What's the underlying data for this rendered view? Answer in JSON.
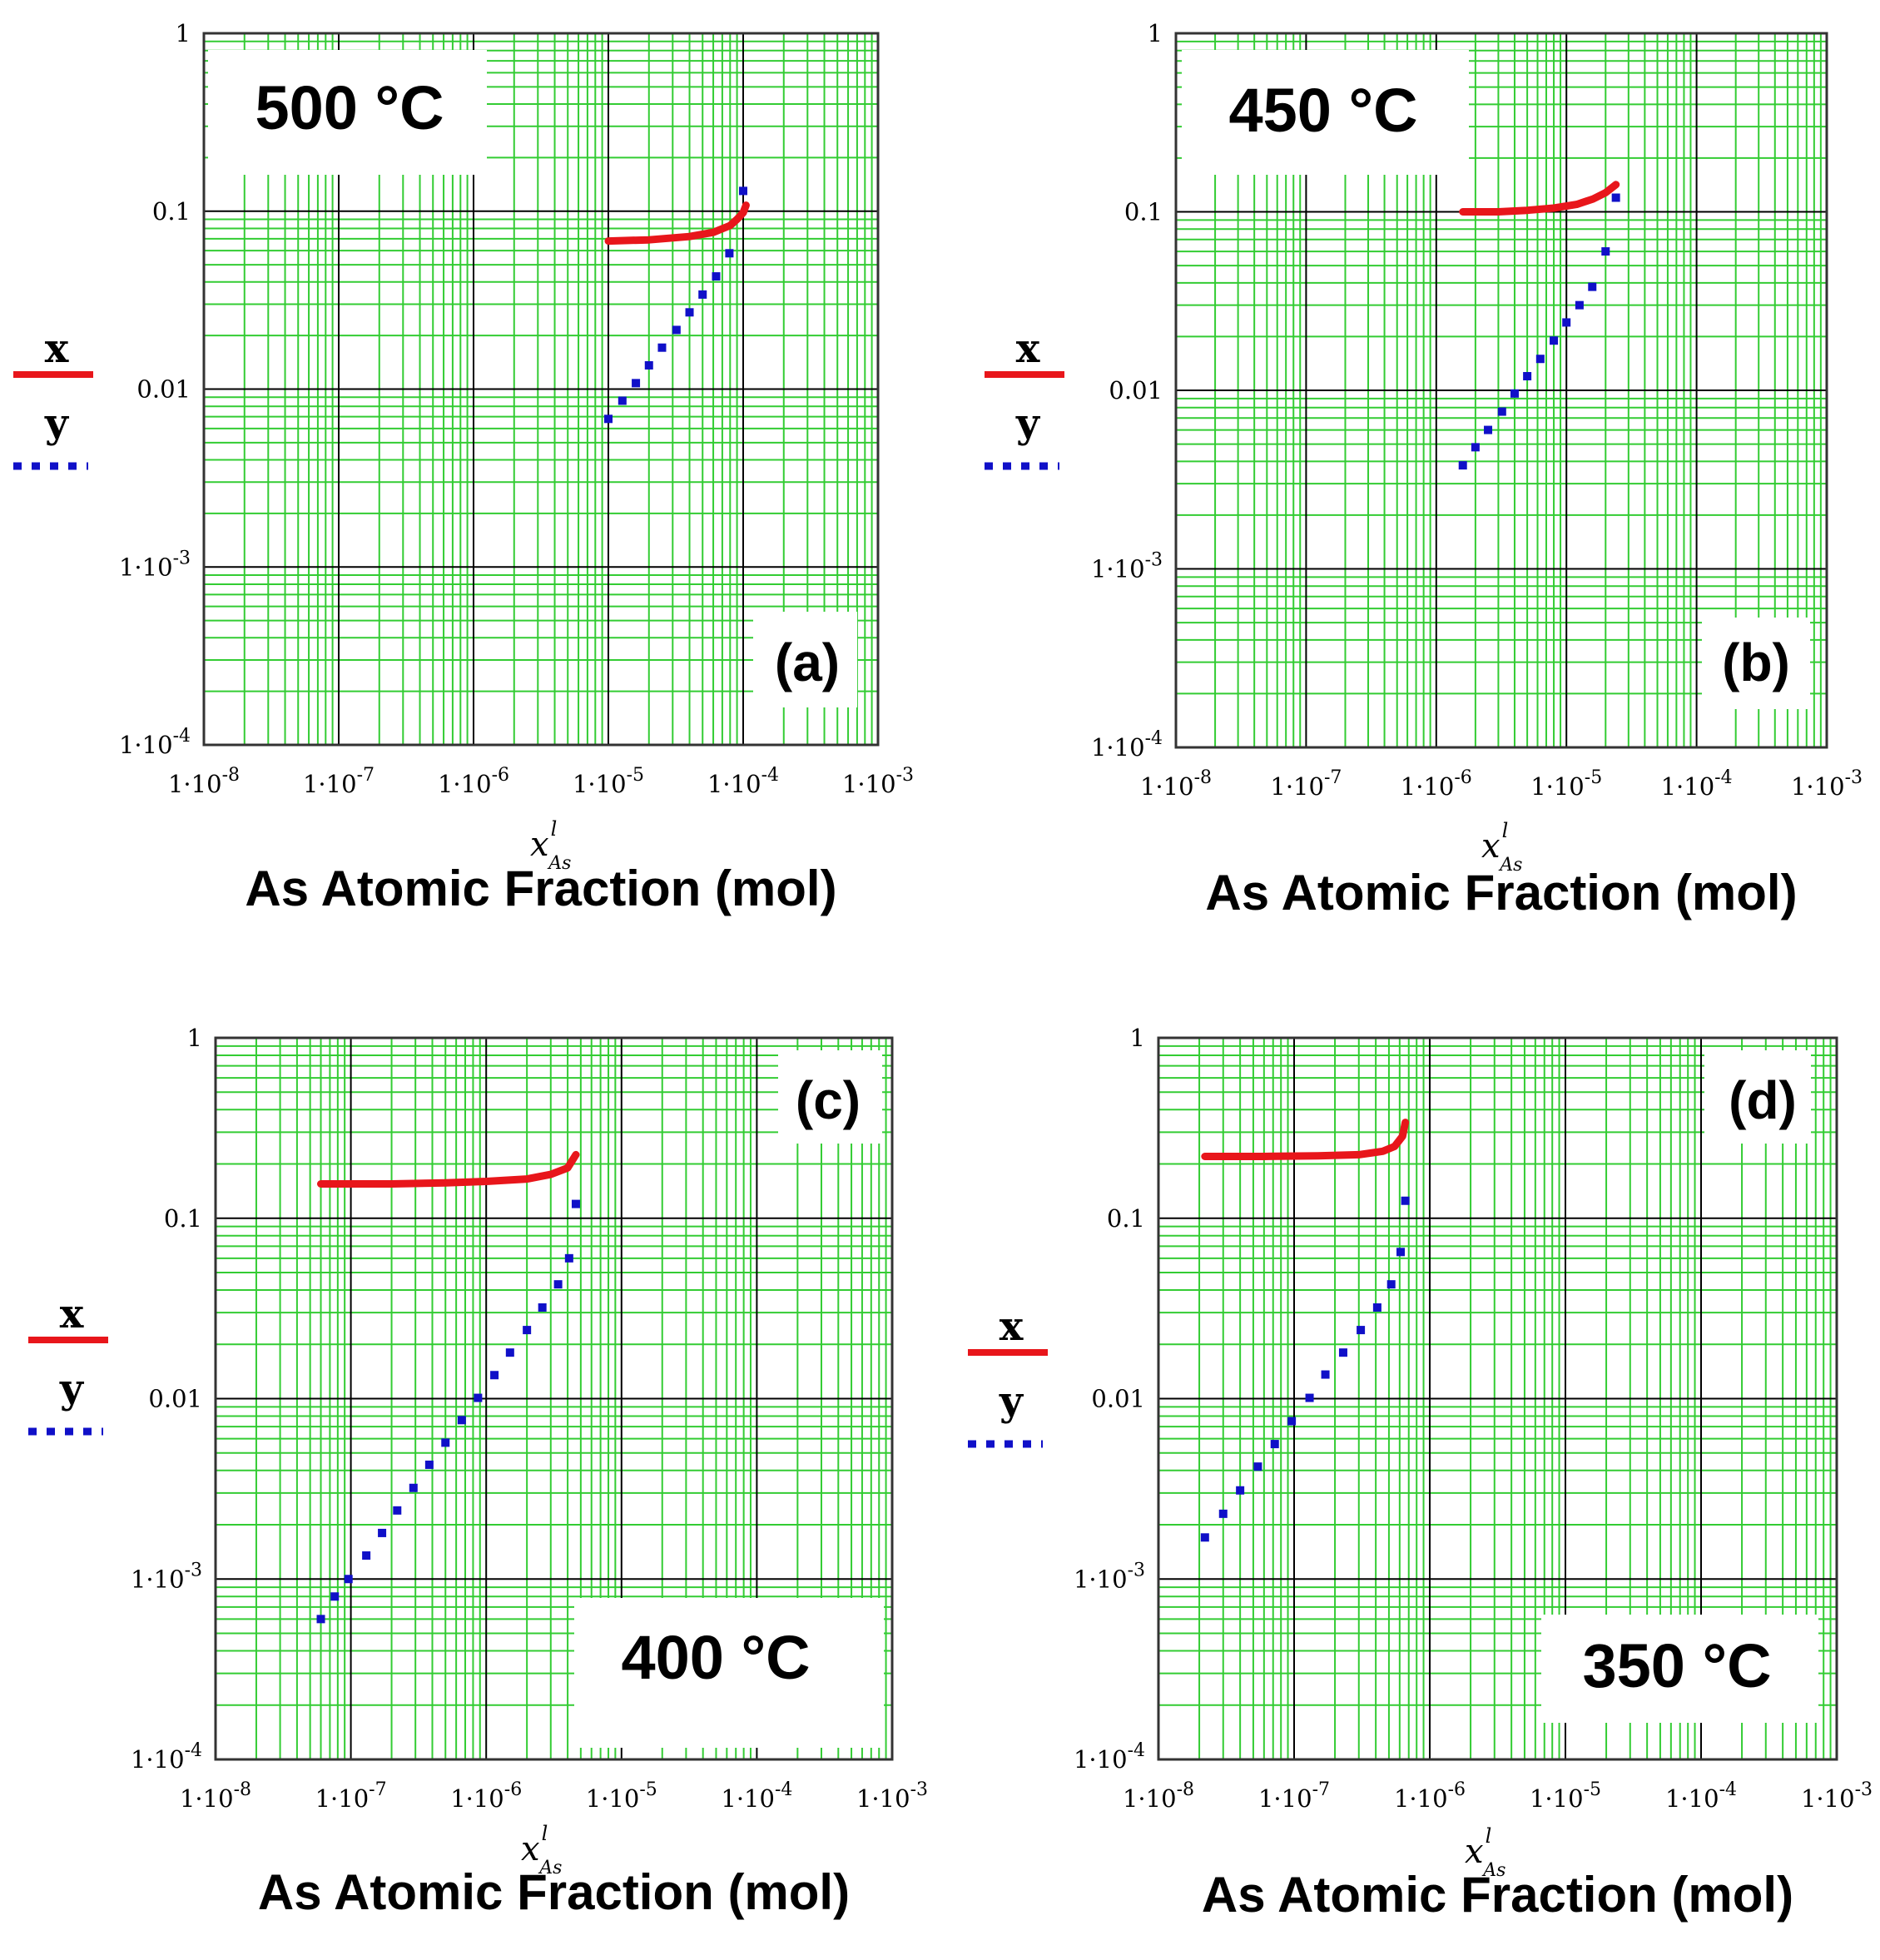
{
  "figure": {
    "axis_symbol": {
      "base": "x",
      "superscript": "l",
      "subscript": "As"
    },
    "legend": {
      "x_label": "x",
      "y_label": "y"
    },
    "colors": {
      "grid_minor": "#33cc33",
      "grid_major": "#000000",
      "series_x": "#e8161b",
      "series_y": "#1010c8"
    }
  },
  "chart_data": [
    {
      "type": "line",
      "panel_label": "(a)",
      "temperature_label": "500 °C",
      "xlabel": "As Atomic Fraction (mol)",
      "xscale": "log",
      "yscale": "log",
      "xlim": [
        1e-08,
        0.001
      ],
      "ylim": [
        0.0001,
        1
      ],
      "x_ticks": [
        "1·10-8",
        "1·10-7",
        "1·10-6",
        "1·10-5",
        "1·10-4",
        "1·10-3"
      ],
      "y_ticks": [
        "1·10-4",
        "1·10-3",
        "0.01",
        "0.1",
        "1"
      ],
      "series": [
        {
          "name": "x",
          "style": "solid",
          "x": [
            1e-05,
            2e-05,
            4e-05,
            6e-05,
            8e-05,
            9e-05,
            0.0001,
            0.000105
          ],
          "y": [
            0.068,
            0.069,
            0.072,
            0.076,
            0.083,
            0.09,
            0.098,
            0.108
          ]
        },
        {
          "name": "y",
          "style": "dotted",
          "x": [
            1e-05,
            1.27e-05,
            1.6e-05,
            2e-05,
            2.5e-05,
            3.2e-05,
            4e-05,
            5e-05,
            6.3e-05,
            7.9e-05,
            0.0001
          ],
          "y": [
            0.0068,
            0.0086,
            0.0108,
            0.0136,
            0.0171,
            0.0215,
            0.027,
            0.034,
            0.043,
            0.058,
            0.13
          ]
        }
      ]
    },
    {
      "type": "line",
      "panel_label": "(b)",
      "temperature_label": "450 °C",
      "xlabel": "As Atomic Fraction (mol)",
      "xscale": "log",
      "yscale": "log",
      "xlim": [
        1e-08,
        0.001
      ],
      "ylim": [
        0.0001,
        1
      ],
      "x_ticks": [
        "1·10-8",
        "1·10-7",
        "1·10-6",
        "1·10-5",
        "1·10-4",
        "1·10-3"
      ],
      "y_ticks": [
        "1·10-4",
        "1·10-3",
        "0.01",
        "0.1",
        "1"
      ],
      "series": [
        {
          "name": "x",
          "style": "solid",
          "x": [
            1.6e-06,
            3e-06,
            5e-06,
            8e-06,
            1.2e-05,
            1.6e-05,
            2e-05,
            2.4e-05
          ],
          "y": [
            0.1,
            0.1,
            0.102,
            0.105,
            0.11,
            0.118,
            0.128,
            0.142
          ]
        },
        {
          "name": "y",
          "style": "dotted",
          "x": [
            1.6e-06,
            2e-06,
            2.5e-06,
            3.2e-06,
            4e-06,
            5e-06,
            6.3e-06,
            8e-06,
            1e-05,
            1.26e-05,
            1.58e-05,
            2e-05,
            2.4e-05
          ],
          "y": [
            0.0038,
            0.0048,
            0.006,
            0.0076,
            0.0096,
            0.012,
            0.015,
            0.019,
            0.024,
            0.03,
            0.038,
            0.06,
            0.12
          ]
        }
      ]
    },
    {
      "type": "line",
      "panel_label": "(c)",
      "temperature_label": "400 °C",
      "xlabel": "As Atomic Fraction (mol)",
      "xscale": "log",
      "yscale": "log",
      "xlim": [
        1e-08,
        0.001
      ],
      "ylim": [
        0.0001,
        1
      ],
      "x_ticks": [
        "1·10-8",
        "1·10-7",
        "1·10-6",
        "1·10-5",
        "1·10-4",
        "1·10-3"
      ],
      "y_ticks": [
        "1·10-4",
        "1·10-3",
        "0.01",
        "0.1",
        "1"
      ],
      "series": [
        {
          "name": "x",
          "style": "solid",
          "x": [
            6e-08,
            2e-07,
            5e-07,
            1e-06,
            2e-06,
            3e-06,
            4e-06,
            4.6e-06
          ],
          "y": [
            0.155,
            0.155,
            0.157,
            0.16,
            0.165,
            0.175,
            0.19,
            0.225
          ]
        },
        {
          "name": "y",
          "style": "dotted",
          "x": [
            6e-08,
            7.6e-08,
            9.6e-08,
            1.3e-07,
            1.7e-07,
            2.2e-07,
            2.9e-07,
            3.8e-07,
            5e-07,
            6.6e-07,
            8.7e-07,
            1.15e-06,
            1.5e-06,
            2e-06,
            2.6e-06,
            3.4e-06,
            4.1e-06,
            4.6e-06
          ],
          "y": [
            0.0006,
            0.0008,
            0.001,
            0.00135,
            0.0018,
            0.0024,
            0.0032,
            0.0043,
            0.0057,
            0.0076,
            0.0101,
            0.0135,
            0.018,
            0.024,
            0.032,
            0.043,
            0.06,
            0.12
          ]
        }
      ]
    },
    {
      "type": "line",
      "panel_label": "(d)",
      "temperature_label": "350 °C",
      "xlabel": "As Atomic Fraction (mol)",
      "xscale": "log",
      "yscale": "log",
      "xlim": [
        1e-08,
        0.001
      ],
      "ylim": [
        0.0001,
        1
      ],
      "x_ticks": [
        "1·10-8",
        "1·10-7",
        "1·10-6",
        "1·10-5",
        "1·10-4",
        "1·10-3"
      ],
      "y_ticks": [
        "1·10-4",
        "1·10-3",
        "0.01",
        "0.1",
        "1"
      ],
      "series": [
        {
          "name": "x",
          "style": "solid",
          "x": [
            2.2e-08,
            6e-08,
            1.5e-07,
            3e-07,
            4.5e-07,
            5.5e-07,
            6.3e-07,
            6.6e-07
          ],
          "y": [
            0.22,
            0.22,
            0.222,
            0.225,
            0.235,
            0.25,
            0.285,
            0.34
          ]
        },
        {
          "name": "y",
          "style": "dotted",
          "x": [
            2.2e-08,
            3e-08,
            4e-08,
            5.4e-08,
            7.2e-08,
            9.6e-08,
            1.3e-07,
            1.7e-07,
            2.3e-07,
            3.1e-07,
            4.1e-07,
            5.2e-07,
            6.1e-07,
            6.6e-07
          ],
          "y": [
            0.0017,
            0.0023,
            0.0031,
            0.0042,
            0.0056,
            0.0075,
            0.0101,
            0.0136,
            0.018,
            0.024,
            0.032,
            0.043,
            0.065,
            0.125
          ]
        }
      ]
    }
  ]
}
